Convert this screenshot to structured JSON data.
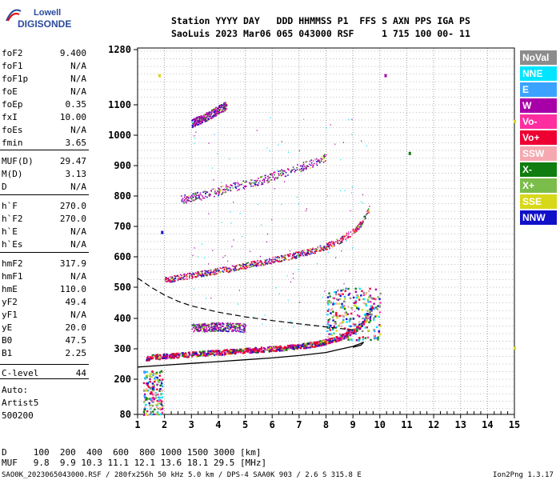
{
  "logo": {
    "line1": "Lowell",
    "line2": "DIGISONDE"
  },
  "header": {
    "row1": "Station YYYY DAY   DDD HHMMSS P1  FFS S AXN PPS IGA PS",
    "row2": "SaoLuis 2023 Mar06 065 043000 RSF     1 715 100 00- 11"
  },
  "params": [
    {
      "name": "foF2",
      "value": "9.400"
    },
    {
      "name": "foF1",
      "value": "N/A"
    },
    {
      "name": "foF1p",
      "value": "N/A"
    },
    {
      "name": "foE",
      "value": "N/A"
    },
    {
      "name": "foEp",
      "value": "0.35"
    },
    {
      "name": "fxI",
      "value": "10.00"
    },
    {
      "name": "foEs",
      "value": "N/A"
    },
    {
      "name": "fmin",
      "value": "3.65"
    },
    {
      "name": "MUF(D)",
      "value": "29.47"
    },
    {
      "name": "M(D)",
      "value": "3.13"
    },
    {
      "name": "D",
      "value": "N/A"
    },
    {
      "name": "h`F",
      "value": "270.0"
    },
    {
      "name": "h`F2",
      "value": "270.0"
    },
    {
      "name": "h`E",
      "value": "N/A"
    },
    {
      "name": "h`Es",
      "value": "N/A"
    },
    {
      "name": "hmF2",
      "value": "317.9"
    },
    {
      "name": "hmF1",
      "value": "N/A"
    },
    {
      "name": "hmE",
      "value": "110.0"
    },
    {
      "name": "yF2",
      "value": "49.4"
    },
    {
      "name": "yF1",
      "value": "N/A"
    },
    {
      "name": "yE",
      "value": "20.0"
    },
    {
      "name": "B0",
      "value": "47.5"
    },
    {
      "name": "B1",
      "value": "2.25"
    },
    {
      "name": "C-level",
      "value": "44"
    }
  ],
  "auto": {
    "line1": "Auto:",
    "line2": "Artist5",
    "line3": "500200"
  },
  "legend": [
    {
      "label": "NoVal",
      "color": "#8c8c8c"
    },
    {
      "label": "NNE",
      "color": "#00e5ff"
    },
    {
      "label": "E",
      "color": "#3ba3ff"
    },
    {
      "label": "W",
      "color": "#a800a8"
    },
    {
      "label": "Vo-",
      "color": "#ff2ea0"
    },
    {
      "label": "Vo+",
      "color": "#ee0033"
    },
    {
      "label": "SSW",
      "color": "#f5a8b0"
    },
    {
      "label": "X-",
      "color": "#0f7d0f"
    },
    {
      "label": "X+",
      "color": "#7bbd4a"
    },
    {
      "label": "SSE",
      "color": "#d8d81a"
    },
    {
      "label": "NNW",
      "color": "#1010c8"
    }
  ],
  "footer": {
    "d_row": "D     100  200  400  600  800 1000 1500 3000 [km]",
    "muf_row": "MUF   9.8  9.9 10.3 11.1 12.1 13.6 18.1 29.5 [MHz]",
    "info": "SAO0K_2023065043000.RSF / 280fx256h 50 kHz 5.0 km / DPS-4 SAA0K 903 / 2.6 S 315.8 E",
    "version": "Ion2Png 1.3.17"
  },
  "chart_data": {
    "type": "scatter",
    "xlabel": "",
    "ylabel": "",
    "xlim": [
      1,
      15
    ],
    "ylim": [
      80,
      1280
    ],
    "x_ticks": [
      1,
      2,
      3,
      4,
      5,
      6,
      7,
      8,
      9,
      10,
      11,
      12,
      13,
      14,
      15
    ],
    "y_ticks": [
      80,
      200,
      300,
      400,
      500,
      600,
      700,
      800,
      900,
      1000,
      1100,
      1280
    ],
    "grid": true,
    "traces": [
      {
        "name": "F-layer trace",
        "color": "#ee0033",
        "x": [
          1.3,
          2.0,
          3.0,
          4.0,
          5.0,
          6.0,
          7.0,
          7.5,
          8.0,
          8.5,
          9.0,
          9.3,
          9.5,
          9.7
        ],
        "y": [
          272,
          278,
          284,
          290,
          296,
          302,
          310,
          316,
          325,
          338,
          360,
          380,
          405,
          440
        ]
      },
      {
        "name": "2-hop trace",
        "color": "#ee0033",
        "x": [
          2.0,
          3.0,
          4.0,
          5.0,
          6.0,
          7.0,
          8.0,
          8.5,
          9.0,
          9.3,
          9.6
        ],
        "y": [
          525,
          540,
          555,
          572,
          590,
          610,
          635,
          655,
          685,
          710,
          760
        ]
      },
      {
        "name": "3-hop trace",
        "color": "#a800a8",
        "x": [
          2.6,
          3.5,
          4.5,
          5.5,
          6.5,
          7.5,
          8.0
        ],
        "y": [
          790,
          805,
          830,
          850,
          880,
          910,
          930
        ]
      },
      {
        "name": "high trace",
        "color": "#a800a8",
        "x": [
          3.0,
          3.5,
          4.0,
          4.3
        ],
        "y": [
          1040,
          1060,
          1085,
          1100
        ]
      },
      {
        "name": "E-cluster",
        "color": "#a800a8",
        "x": [
          3.0,
          3.5,
          4.0,
          4.5,
          5.0
        ],
        "y": [
          370,
          372,
          374,
          372,
          370
        ]
      }
    ],
    "profile": {
      "color": "#000000",
      "x": [
        1.0,
        2.0,
        3.0,
        4.0,
        5.0,
        6.0,
        7.0,
        8.0,
        8.5,
        9.0,
        9.3,
        9.4,
        9.3,
        9.0
      ],
      "y": [
        240,
        246,
        252,
        258,
        264,
        270,
        278,
        288,
        298,
        308,
        318,
        322,
        312,
        305
      ]
    },
    "muf_curve": {
      "color": "#000000",
      "style": "dashed",
      "x": [
        1.0,
        1.5,
        2.0,
        2.5,
        3.0,
        4.0,
        5.0,
        6.0,
        7.0,
        8.0,
        9.0
      ],
      "y": [
        530,
        500,
        475,
        455,
        440,
        420,
        405,
        393,
        382,
        372,
        362
      ]
    },
    "markers": [
      {
        "x": 1.8,
        "y": 1195,
        "color": "#d8d81a"
      },
      {
        "x": 10.2,
        "y": 1195,
        "color": "#a800a8"
      },
      {
        "x": 11.1,
        "y": 940,
        "color": "#0f7d0f"
      },
      {
        "x": 15.0,
        "y": 1045,
        "color": "#d8d81a"
      },
      {
        "x": 15.0,
        "y": 302,
        "color": "#d8d81a"
      },
      {
        "x": 1.9,
        "y": 680,
        "color": "#1010c8"
      }
    ],
    "noise_clusters": [
      {
        "x_range": [
          1.2,
          1.9
        ],
        "y_range": [
          80,
          230
        ]
      },
      {
        "x_range": [
          8.0,
          10.0
        ],
        "y_range": [
          330,
          500
        ]
      }
    ]
  }
}
